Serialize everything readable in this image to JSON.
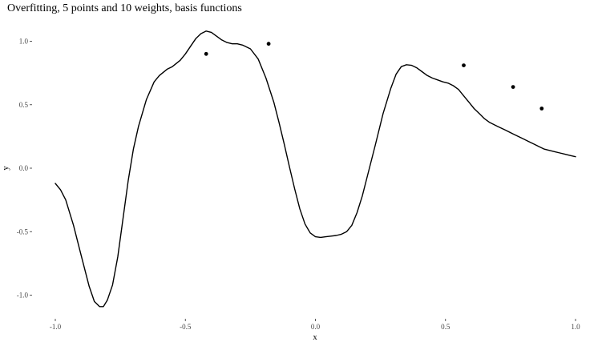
{
  "chart_data": {
    "type": "line",
    "title": "Overfitting, 5 points and 10 weights, basis functions",
    "xlabel": "x",
    "ylabel": "y",
    "xlim": [
      -1.0,
      1.0
    ],
    "ylim": [
      -1.15,
      1.12
    ],
    "x_ticks": [
      -1.0,
      -0.5,
      0.0,
      0.5,
      1.0
    ],
    "x_tick_labels": [
      "-1.0",
      "-0.5",
      "0.0",
      "0.5",
      "1.0"
    ],
    "y_ticks": [
      -1.0,
      -0.5,
      0.0,
      0.5,
      1.0
    ],
    "y_tick_labels": [
      "-1.0",
      "-0.5",
      "0.0",
      "0.5",
      "1.0"
    ],
    "grid": false,
    "legend": "none",
    "series": [
      {
        "mode": "line",
        "color": "#000000",
        "x": [
          -1.0,
          -0.98,
          -0.96,
          -0.93,
          -0.9,
          -0.87,
          -0.85,
          -0.83,
          -0.815,
          -0.8,
          -0.78,
          -0.76,
          -0.74,
          -0.72,
          -0.7,
          -0.68,
          -0.65,
          -0.62,
          -0.6,
          -0.57,
          -0.55,
          -0.52,
          -0.5,
          -0.48,
          -0.46,
          -0.44,
          -0.42,
          -0.4,
          -0.38,
          -0.36,
          -0.34,
          -0.32,
          -0.3,
          -0.28,
          -0.25,
          -0.22,
          -0.19,
          -0.16,
          -0.14,
          -0.12,
          -0.1,
          -0.08,
          -0.06,
          -0.04,
          -0.02,
          0.0,
          0.02,
          0.04,
          0.06,
          0.08,
          0.1,
          0.12,
          0.14,
          0.16,
          0.18,
          0.2,
          0.23,
          0.26,
          0.29,
          0.31,
          0.33,
          0.35,
          0.37,
          0.39,
          0.41,
          0.43,
          0.45,
          0.47,
          0.49,
          0.51,
          0.53,
          0.55,
          0.57,
          0.59,
          0.61,
          0.63,
          0.65,
          0.67,
          0.7,
          0.73,
          0.76,
          0.78,
          0.8,
          0.82,
          0.84,
          0.86,
          0.88,
          0.9,
          0.92,
          0.94,
          0.96,
          0.98,
          1.0
        ],
        "y": [
          -0.12,
          -0.17,
          -0.25,
          -0.45,
          -0.69,
          -0.93,
          -1.05,
          -1.09,
          -1.09,
          -1.04,
          -0.92,
          -0.7,
          -0.4,
          -0.1,
          0.15,
          0.33,
          0.54,
          0.68,
          0.73,
          0.78,
          0.8,
          0.85,
          0.9,
          0.96,
          1.02,
          1.06,
          1.08,
          1.07,
          1.04,
          1.01,
          0.99,
          0.98,
          0.98,
          0.97,
          0.94,
          0.86,
          0.71,
          0.52,
          0.36,
          0.19,
          0.01,
          -0.16,
          -0.32,
          -0.44,
          -0.51,
          -0.54,
          -0.545,
          -0.54,
          -0.535,
          -0.53,
          -0.52,
          -0.5,
          -0.45,
          -0.35,
          -0.22,
          -0.06,
          0.18,
          0.43,
          0.63,
          0.74,
          0.8,
          0.815,
          0.81,
          0.79,
          0.76,
          0.73,
          0.71,
          0.695,
          0.68,
          0.67,
          0.65,
          0.62,
          0.57,
          0.52,
          0.47,
          0.43,
          0.39,
          0.36,
          0.33,
          0.3,
          0.27,
          0.25,
          0.23,
          0.21,
          0.19,
          0.17,
          0.15,
          0.14,
          0.13,
          0.12,
          0.11,
          0.1,
          0.09
        ]
      },
      {
        "mode": "points",
        "color": "#000000",
        "x": [
          -0.42,
          -0.18,
          0.57,
          0.76,
          0.87
        ],
        "y": [
          0.9,
          0.98,
          0.81,
          0.64,
          0.47
        ]
      }
    ]
  }
}
